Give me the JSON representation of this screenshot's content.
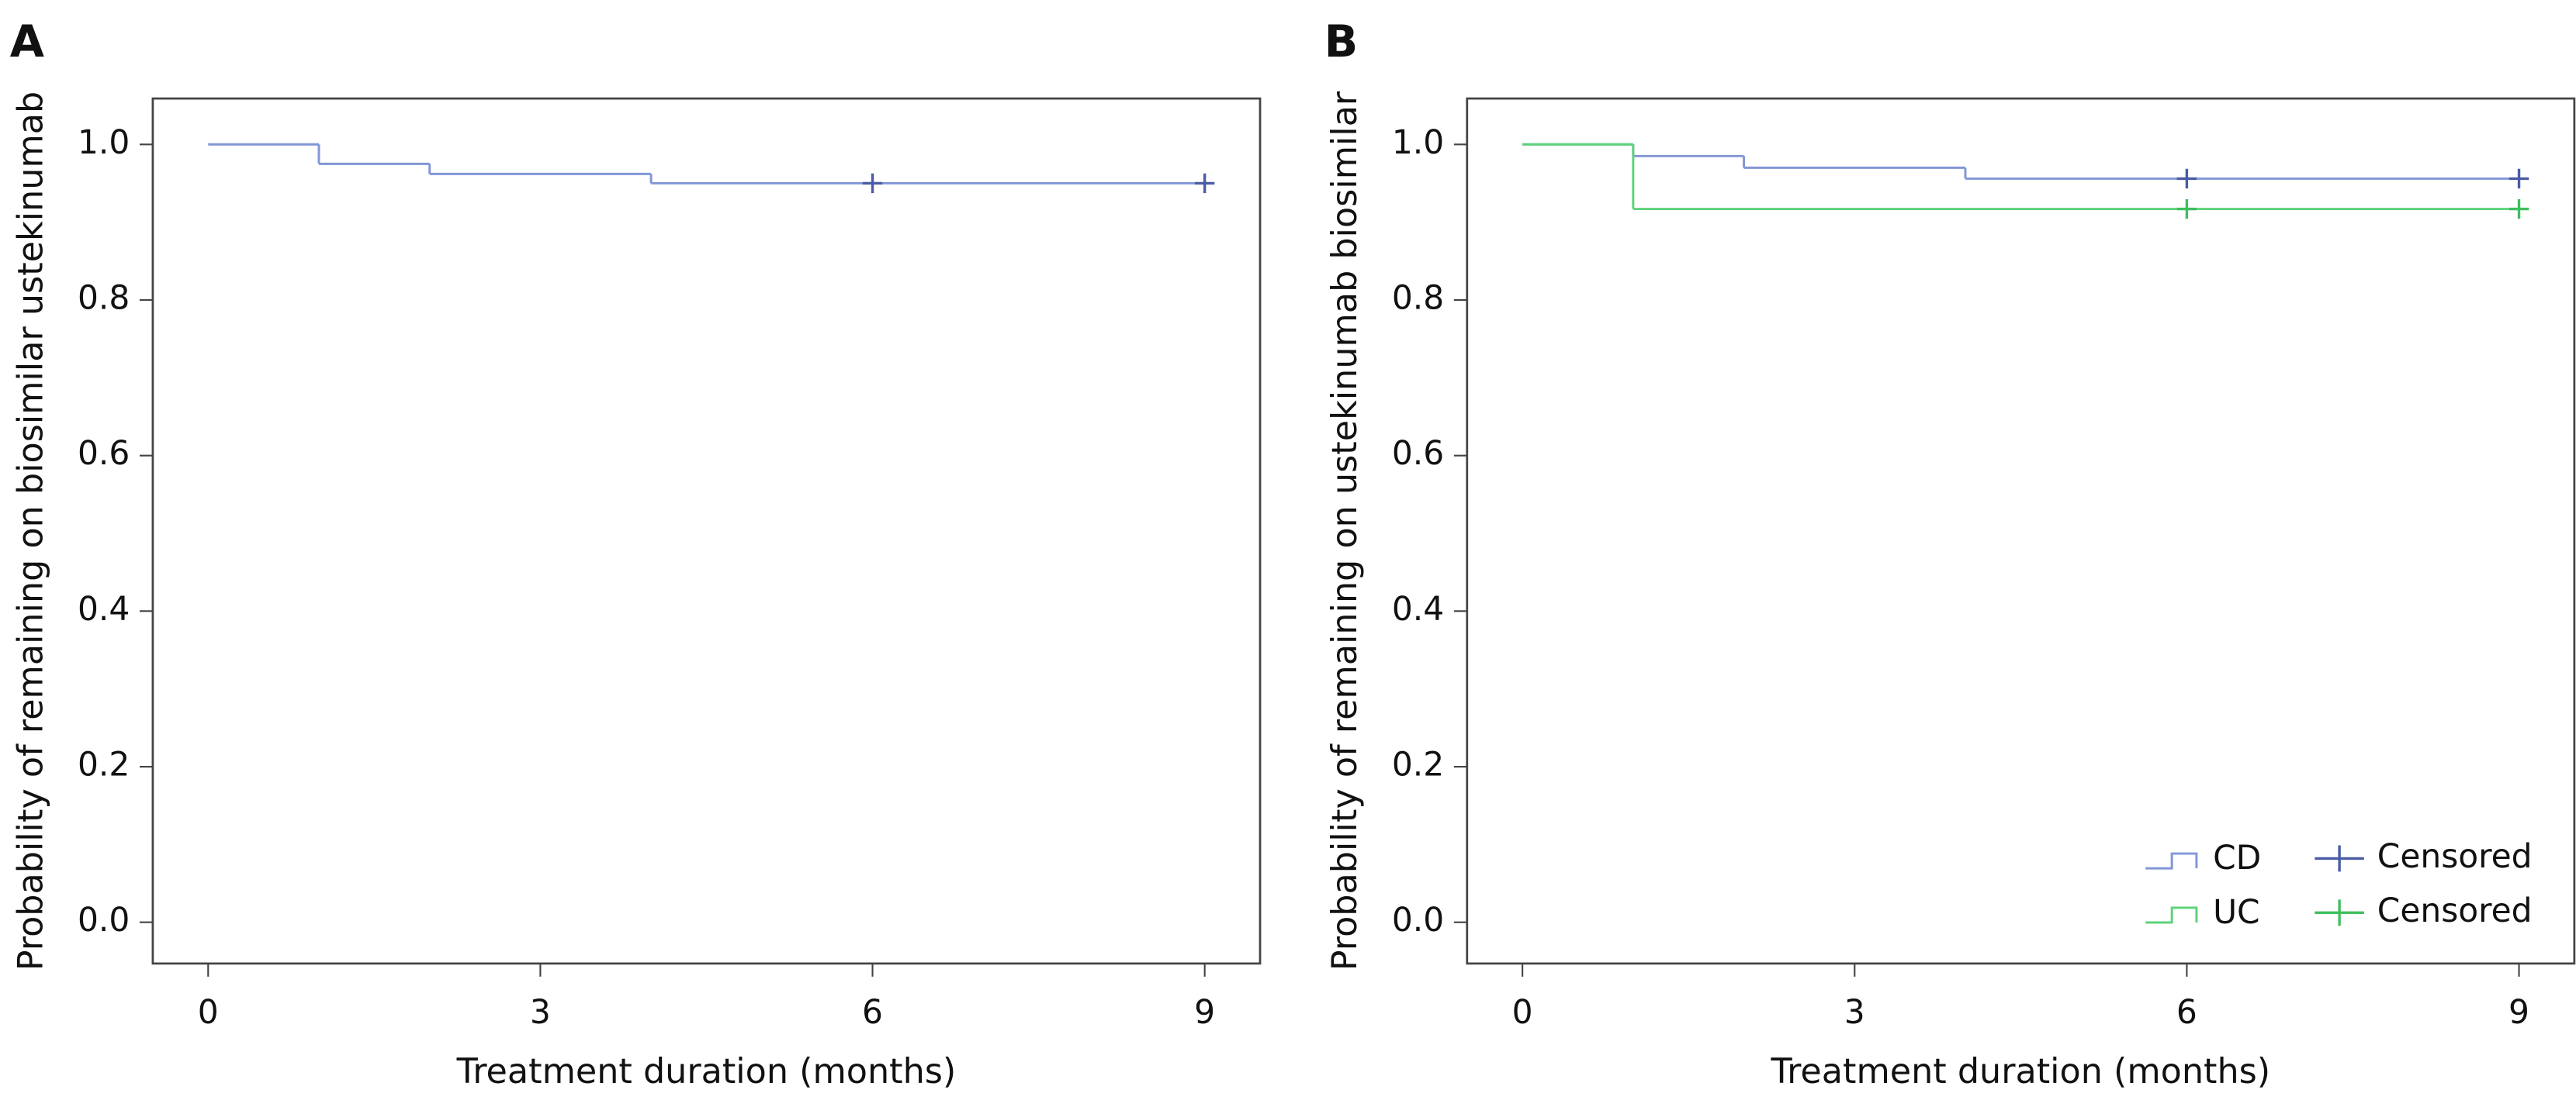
{
  "chart_data": [
    {
      "type": "line",
      "step": "post",
      "panel_label": "A",
      "x_label": "Treatment duration (months)",
      "y_label": "Probability of remaining on biosimilar ustekinumab",
      "xlim": [
        -0.5,
        9.5
      ],
      "xticks": [
        0,
        3,
        6,
        9
      ],
      "ylim": [
        -0.053,
        1.059
      ],
      "yticks": [
        {
          "value": 0,
          "label": "0.0"
        },
        0.2,
        0.4,
        0.6,
        0.8,
        {
          "value": 1,
          "label": "1.0"
        }
      ],
      "grid": false,
      "series": [
        {
          "color": "#8296d6",
          "x": [
            0,
            1,
            2,
            4,
            9
          ],
          "values": [
            1.0,
            0.975,
            0.962,
            0.95,
            0.95
          ]
        },
        {
          "marker": "+",
          "color": "#4a5ca6",
          "x": [
            6,
            9
          ],
          "values": [
            0.95,
            0.95
          ]
        }
      ]
    },
    {
      "type": "line",
      "step": "post",
      "panel_label": "B",
      "x_label": "Treatment duration (months)",
      "y_label": "Probability of remaining on ustekinumab biosimilar",
      "xlim": [
        -0.5,
        9.5
      ],
      "xticks": [
        0,
        3,
        6,
        9
      ],
      "ylim": [
        -0.053,
        1.059
      ],
      "yticks": [
        {
          "value": 0,
          "label": "0.0"
        },
        0.2,
        0.4,
        0.6,
        0.8,
        {
          "value": 1,
          "label": "1.0"
        }
      ],
      "grid": false,
      "legend": "bottom-right",
      "series": [
        {
          "name": "CD",
          "color": "#8296d6",
          "x": [
            0,
            1,
            2,
            4,
            9
          ],
          "values": [
            1.0,
            0.985,
            0.97,
            0.956,
            0.956
          ]
        },
        {
          "name": "Censored",
          "marker": "+",
          "color": "#4a5ca6",
          "x": [
            6,
            9
          ],
          "values": [
            0.956,
            0.956
          ]
        },
        {
          "name": "UC",
          "color": "#5ed37a",
          "x": [
            0,
            1,
            9
          ],
          "values": [
            1.0,
            0.917,
            0.917
          ]
        },
        {
          "name": "Censored",
          "marker": "+",
          "color": "#3fbf5e",
          "x": [
            6,
            9
          ],
          "values": [
            0.917,
            0.917
          ]
        }
      ]
    }
  ]
}
